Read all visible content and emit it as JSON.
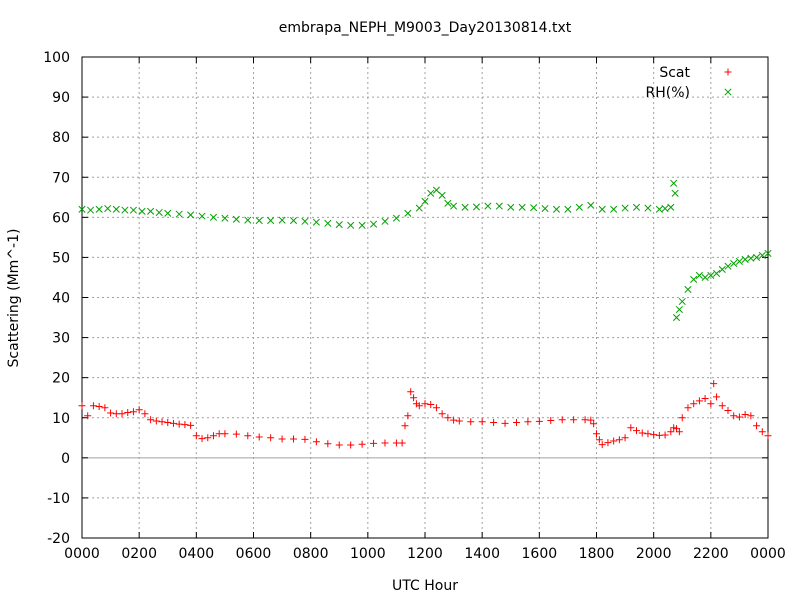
{
  "chart_data": {
    "type": "scatter",
    "title": "embrapa_NEPH_M9003_Day20130814.txt",
    "xlabel": "UTC Hour",
    "ylabel": "Scattering (Mm^-1)",
    "xlim": [
      0,
      24
    ],
    "ylim": [
      -20,
      100
    ],
    "x_tick_values": [
      0,
      2,
      4,
      6,
      8,
      10,
      12,
      14,
      16,
      18,
      20,
      22,
      24
    ],
    "x_tick_labels": [
      "0000",
      "0200",
      "0400",
      "0600",
      "0800",
      "1000",
      "1200",
      "1400",
      "1600",
      "1800",
      "2000",
      "2200",
      "0000"
    ],
    "y_ticks": [
      -20,
      -10,
      0,
      10,
      20,
      30,
      40,
      50,
      60,
      70,
      80,
      90,
      100
    ],
    "grid": true,
    "zero_line": true,
    "legend_position": "top-right",
    "series": [
      {
        "name": "Scat",
        "marker": "+",
        "color": "#ff0000",
        "x": [
          0.0,
          0.2,
          0.4,
          0.6,
          0.8,
          1.0,
          1.2,
          1.4,
          1.6,
          1.8,
          2.0,
          2.2,
          2.4,
          2.6,
          2.8,
          3.0,
          3.2,
          3.4,
          3.6,
          3.8,
          4.0,
          4.2,
          4.4,
          4.6,
          4.8,
          5.0,
          5.4,
          5.8,
          6.2,
          6.6,
          7.0,
          7.4,
          7.8,
          8.2,
          8.6,
          9.0,
          9.4,
          9.8,
          10.2,
          10.6,
          11.0,
          11.2,
          11.3,
          11.4,
          11.5,
          11.6,
          11.7,
          11.8,
          12.0,
          12.2,
          12.4,
          12.6,
          12.8,
          13.0,
          13.2,
          13.6,
          14.0,
          14.4,
          14.8,
          15.2,
          15.6,
          16.0,
          16.4,
          16.8,
          17.2,
          17.6,
          17.8,
          17.9,
          18.0,
          18.1,
          18.2,
          18.4,
          18.6,
          18.8,
          19.0,
          19.2,
          19.4,
          19.6,
          19.8,
          20.0,
          20.2,
          20.4,
          20.6,
          20.7,
          20.8,
          20.9,
          21.0,
          21.2,
          21.4,
          21.6,
          21.8,
          22.0,
          22.1,
          22.2,
          22.4,
          22.6,
          22.8,
          23.0,
          23.2,
          23.4,
          23.6,
          23.8,
          24.0
        ],
        "y": [
          13.0,
          10.5,
          13.0,
          12.8,
          12.5,
          11.2,
          11.0,
          11.0,
          11.3,
          11.5,
          12.0,
          11.0,
          9.5,
          9.2,
          9.0,
          8.8,
          8.6,
          8.4,
          8.3,
          8.1,
          5.5,
          4.8,
          5.0,
          5.5,
          6.0,
          6.0,
          5.9,
          5.5,
          5.2,
          5.0,
          4.7,
          4.7,
          4.6,
          4.0,
          3.5,
          3.2,
          3.2,
          3.4,
          3.6,
          3.7,
          3.7,
          3.7,
          8.0,
          10.5,
          16.5,
          15.0,
          13.5,
          13.0,
          13.5,
          13.3,
          12.5,
          11.0,
          10.0,
          9.4,
          9.2,
          9.0,
          9.0,
          8.8,
          8.6,
          8.8,
          9.0,
          9.1,
          9.3,
          9.5,
          9.5,
          9.5,
          9.4,
          8.5,
          6.0,
          4.5,
          3.3,
          3.8,
          4.2,
          4.5,
          5.0,
          7.5,
          6.8,
          6.2,
          6.0,
          5.8,
          5.6,
          5.7,
          6.5,
          7.5,
          7.3,
          6.5,
          10.0,
          12.5,
          13.5,
          14.2,
          14.8,
          13.5,
          18.5,
          15.2,
          13.0,
          11.8,
          10.5,
          10.2,
          10.8,
          10.5,
          8.0,
          6.5,
          5.5
        ]
      },
      {
        "name": "RH(%)",
        "marker": "x",
        "color": "#00a000",
        "x": [
          0.0,
          0.3,
          0.6,
          0.9,
          1.2,
          1.5,
          1.8,
          2.1,
          2.4,
          2.7,
          3.0,
          3.4,
          3.8,
          4.2,
          4.6,
          5.0,
          5.4,
          5.8,
          6.2,
          6.6,
          7.0,
          7.4,
          7.8,
          8.2,
          8.6,
          9.0,
          9.4,
          9.8,
          10.2,
          10.6,
          11.0,
          11.4,
          11.8,
          12.0,
          12.2,
          12.4,
          12.6,
          12.8,
          13.0,
          13.4,
          13.8,
          14.2,
          14.6,
          15.0,
          15.4,
          15.8,
          16.2,
          16.6,
          17.0,
          17.4,
          17.8,
          18.2,
          18.6,
          19.0,
          19.4,
          19.8,
          20.2,
          20.4,
          20.6,
          20.7,
          20.75,
          20.8,
          20.9,
          21.0,
          21.2,
          21.4,
          21.6,
          21.8,
          22.0,
          22.2,
          22.4,
          22.6,
          22.8,
          23.0,
          23.2,
          23.4,
          23.6,
          23.8,
          24.0
        ],
        "y": [
          62.0,
          61.8,
          62.0,
          62.2,
          62.0,
          61.8,
          61.8,
          61.5,
          61.5,
          61.2,
          61.0,
          60.8,
          60.6,
          60.3,
          60.0,
          59.8,
          59.5,
          59.3,
          59.2,
          59.2,
          59.3,
          59.2,
          59.0,
          58.8,
          58.5,
          58.2,
          58.0,
          58.0,
          58.3,
          59.0,
          59.8,
          61.0,
          62.3,
          64.0,
          66.0,
          66.8,
          65.5,
          63.5,
          62.8,
          62.5,
          62.6,
          62.8,
          62.8,
          62.5,
          62.5,
          62.4,
          62.2,
          62.0,
          62.0,
          62.5,
          63.0,
          62.0,
          62.0,
          62.3,
          62.5,
          62.3,
          62.0,
          62.2,
          62.5,
          68.5,
          66.0,
          35.0,
          37.0,
          39.0,
          42.0,
          44.5,
          45.5,
          45.0,
          45.5,
          46.0,
          47.0,
          47.8,
          48.5,
          49.0,
          49.5,
          49.8,
          50.0,
          50.5,
          51.0
        ]
      }
    ]
  }
}
